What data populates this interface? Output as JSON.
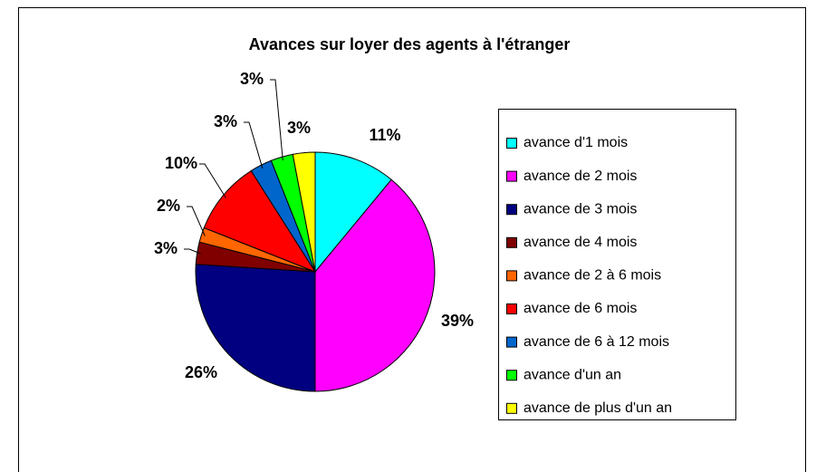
{
  "chart_data": {
    "type": "pie",
    "title": "Avances sur loyer des agents à l'étranger",
    "categories": [
      "avance d'1 mois",
      "avance de 2 mois",
      "avance de 3 mois",
      "avance de 4 mois",
      "avance de 2 à 6 mois",
      "avance de 6 mois",
      "avance de 6 à 12 mois",
      "avance d'un an",
      "avance de plus d'un an"
    ],
    "values": [
      11,
      39,
      26,
      3,
      2,
      10,
      3,
      3,
      3
    ],
    "value_labels": [
      "11%",
      "39%",
      "26%",
      "3%",
      "2%",
      "10%",
      "3%",
      "3%",
      "3%"
    ],
    "colors": [
      "#00ffff",
      "#ff00ff",
      "#000080",
      "#800000",
      "#ff6600",
      "#ff0000",
      "#0066cc",
      "#00ff00",
      "#ffff00"
    ],
    "legend": "right"
  }
}
